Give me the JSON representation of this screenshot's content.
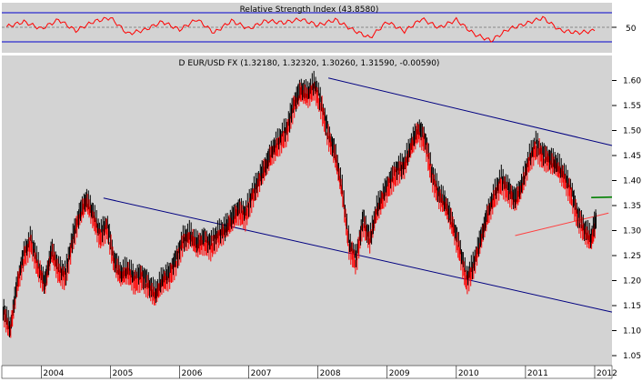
{
  "chart_data": [
    {
      "panel": "rsi",
      "type": "line",
      "title": "Relative Strength Index (43.8580)",
      "y_tick_labels": [
        "50"
      ],
      "ylim": [
        0,
        100
      ],
      "reference_levels": [
        30,
        50,
        70
      ],
      "series": [
        {
          "x": [
            2003.5,
            2003.75,
            2004.0,
            2004.25,
            2004.5,
            2004.75,
            2005.0,
            2005.25,
            2005.5,
            2005.75,
            2006.0,
            2006.25,
            2006.5,
            2006.75,
            2007.0,
            2007.25,
            2007.5,
            2007.75,
            2008.0,
            2008.25,
            2008.5,
            2008.75,
            2009.0,
            2009.25,
            2009.5,
            2009.75,
            2010.0,
            2010.25,
            2010.5,
            2010.75,
            2011.0,
            2011.25,
            2011.5,
            2011.75,
            2012.0
          ],
          "values": [
            52,
            62,
            48,
            66,
            44,
            62,
            70,
            38,
            46,
            62,
            46,
            67,
            40,
            64,
            48,
            64,
            60,
            67,
            55,
            66,
            46,
            30,
            62,
            43,
            68,
            50,
            66,
            38,
            24,
            47,
            58,
            70,
            45,
            40,
            44
          ]
        }
      ]
    },
    {
      "panel": "price",
      "type": "line",
      "title": "D EUR/USD FX (1.32180, 1.32320, 1.30260, 1.31590, -0.00590)",
      "x_tick_labels": [
        "2004",
        "2005",
        "2006",
        "2007",
        "2008",
        "2009",
        "2010",
        "2011",
        "2012"
      ],
      "y_tick_labels": [
        "1.05",
        "1.10",
        "1.15",
        "1.20",
        "1.25",
        "1.30",
        "1.35",
        "1.40",
        "1.45",
        "1.50",
        "1.55",
        "1.60"
      ],
      "ylim": [
        1.03,
        1.65
      ],
      "xlim": [
        2003.43,
        2012.25
      ],
      "grid": false,
      "series": [
        {
          "x": [
            2003.45,
            2003.55,
            2003.65,
            2003.75,
            2003.85,
            2003.95,
            2004.05,
            2004.15,
            2004.25,
            2004.35,
            2004.45,
            2004.55,
            2004.65,
            2004.75,
            2004.85,
            2004.95,
            2005.05,
            2005.15,
            2005.25,
            2005.35,
            2005.45,
            2005.55,
            2005.65,
            2005.75,
            2005.85,
            2005.95,
            2006.05,
            2006.15,
            2006.25,
            2006.35,
            2006.45,
            2006.55,
            2006.65,
            2006.75,
            2006.85,
            2006.95,
            2007.05,
            2007.15,
            2007.25,
            2007.35,
            2007.45,
            2007.55,
            2007.65,
            2007.75,
            2007.85,
            2007.95,
            2008.05,
            2008.15,
            2008.25,
            2008.35,
            2008.45,
            2008.55,
            2008.65,
            2008.75,
            2008.85,
            2008.95,
            2009.05,
            2009.15,
            2009.25,
            2009.35,
            2009.45,
            2009.55,
            2009.65,
            2009.75,
            2009.85,
            2009.95,
            2010.05,
            2010.15,
            2010.25,
            2010.35,
            2010.45,
            2010.55,
            2010.65,
            2010.75,
            2010.85,
            2010.95,
            2011.05,
            2011.15,
            2011.25,
            2011.35,
            2011.45,
            2011.55,
            2011.65,
            2011.75,
            2011.85,
            2011.95,
            2012.02
          ],
          "values": [
            1.14,
            1.1,
            1.19,
            1.25,
            1.28,
            1.23,
            1.19,
            1.26,
            1.22,
            1.21,
            1.28,
            1.33,
            1.36,
            1.33,
            1.29,
            1.31,
            1.24,
            1.21,
            1.22,
            1.2,
            1.21,
            1.19,
            1.17,
            1.2,
            1.21,
            1.24,
            1.28,
            1.29,
            1.27,
            1.28,
            1.27,
            1.29,
            1.3,
            1.32,
            1.34,
            1.33,
            1.37,
            1.4,
            1.43,
            1.46,
            1.48,
            1.5,
            1.55,
            1.58,
            1.57,
            1.59,
            1.55,
            1.49,
            1.45,
            1.38,
            1.27,
            1.24,
            1.32,
            1.28,
            1.34,
            1.37,
            1.4,
            1.42,
            1.43,
            1.47,
            1.5,
            1.48,
            1.41,
            1.37,
            1.35,
            1.31,
            1.26,
            1.2,
            1.23,
            1.28,
            1.33,
            1.37,
            1.4,
            1.38,
            1.36,
            1.39,
            1.44,
            1.47,
            1.45,
            1.44,
            1.43,
            1.41,
            1.38,
            1.33,
            1.3,
            1.28,
            1.32
          ]
        }
      ],
      "trendlines": [
        {
          "name": "upper-channel",
          "x": [
            2008.15,
            2012.25
          ],
          "values": [
            1.605,
            1.47
          ],
          "color": "#000080"
        },
        {
          "name": "lower-channel",
          "x": [
            2004.9,
            2012.25
          ],
          "values": [
            1.365,
            1.137
          ],
          "color": "#000080"
        },
        {
          "name": "support-line",
          "x": [
            2010.85,
            2012.2
          ],
          "values": [
            1.29,
            1.335
          ],
          "color": "#ff4040"
        },
        {
          "name": "resistance-level",
          "x": [
            2011.95,
            2012.25
          ],
          "values": [
            1.366,
            1.367
          ],
          "color": "#008000"
        }
      ]
    }
  ],
  "colors": {
    "background": "#d3d3d3",
    "price_up": "#000000",
    "price_down": "#ff0000",
    "rsi_line": "#ff0000",
    "channel": "#000080",
    "support": "#ff4040",
    "resistance": "#008000"
  }
}
